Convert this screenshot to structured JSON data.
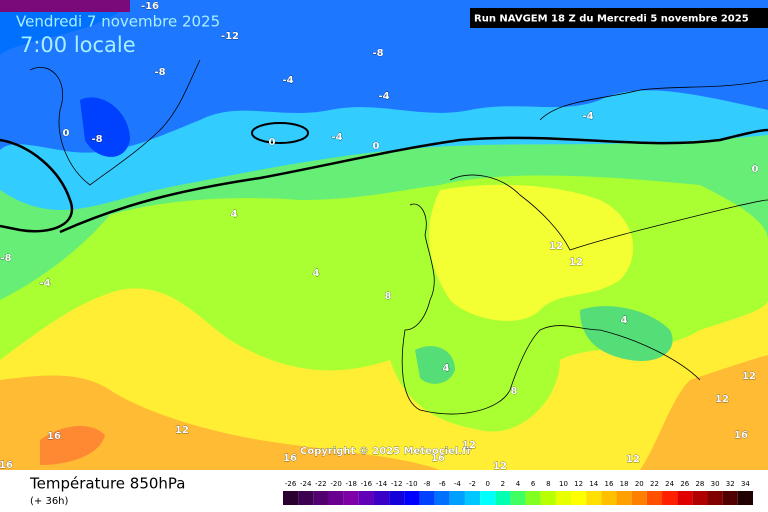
{
  "header": {
    "date": "Vendredi 7 novembre 2025",
    "time": "7:00 locale",
    "run": "Run NAVGEM 18 Z du Mercredi 5 novembre 2025"
  },
  "map": {
    "isotherm_labels": [
      -16,
      -12,
      -8,
      -8,
      -4,
      -4,
      -4,
      0,
      -8,
      0,
      -4,
      0,
      0,
      4,
      -8,
      -4,
      4,
      8,
      12,
      12,
      4,
      4,
      8,
      12,
      12,
      16,
      12,
      16,
      12,
      16,
      16,
      12,
      12,
      16
    ],
    "copyright": "Copyright © 2025 Meteociel.fr"
  },
  "footer": {
    "title": "Température 850hPa",
    "lead": "(+ 36h)"
  },
  "legend": {
    "values": [
      -26,
      -24,
      -22,
      -20,
      -18,
      -16,
      -14,
      -12,
      -10,
      -8,
      -6,
      -4,
      -2,
      0,
      2,
      4,
      6,
      8,
      10,
      12,
      14,
      16,
      18,
      20,
      22,
      24,
      26,
      28,
      30,
      32,
      34
    ],
    "colors": [
      "#2a0030",
      "#3b0050",
      "#520070",
      "#6a0090",
      "#8000a8",
      "#6000b8",
      "#3a00c8",
      "#1400d8",
      "#0000ff",
      "#0040ff",
      "#0070ff",
      "#00a0ff",
      "#00c8ff",
      "#00ffff",
      "#00ffb0",
      "#40ff60",
      "#80ff20",
      "#b8ff00",
      "#e8ff00",
      "#ffff00",
      "#ffe000",
      "#ffc000",
      "#ffa000",
      "#ff8000",
      "#ff5000",
      "#ff2000",
      "#e00000",
      "#b00000",
      "#800000",
      "#500000",
      "#200000"
    ]
  }
}
